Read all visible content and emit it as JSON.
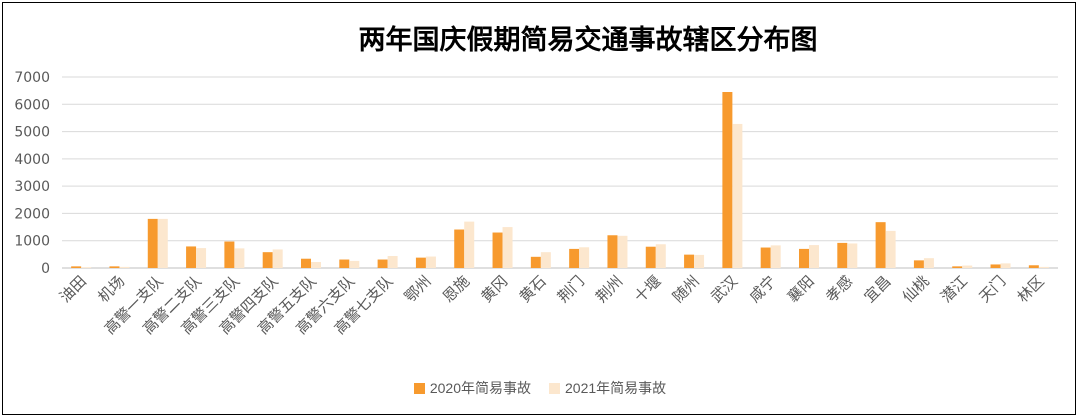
{
  "chart_data": {
    "type": "bar",
    "title": "两年国庆假期简易交通事故辖区分布图",
    "xlabel": "",
    "ylabel": "",
    "ylim": [
      0,
      7000
    ],
    "yticks": [
      0,
      1000,
      2000,
      3000,
      4000,
      5000,
      6000,
      7000
    ],
    "grid": true,
    "legend_position": "bottom",
    "categories": [
      "油田",
      "机场",
      "高警一支队",
      "高警二支队",
      "高警三支队",
      "高警四支队",
      "高警五支队",
      "高警六支队",
      "高警七支队",
      "鄂州",
      "恩施",
      "黄冈",
      "黄石",
      "荆门",
      "荆州",
      "十堰",
      "随州",
      "武汉",
      "咸宁",
      "襄阳",
      "孝感",
      "宜昌",
      "仙桃",
      "潜江",
      "天门",
      "林区"
    ],
    "series": [
      {
        "name": "2020年简易事故",
        "color": "#F79A2E",
        "values": [
          60,
          60,
          1800,
          790,
          970,
          580,
          340,
          310,
          310,
          380,
          1410,
          1300,
          410,
          700,
          1200,
          780,
          490,
          6450,
          750,
          700,
          920,
          1680,
          280,
          60,
          130,
          100
        ]
      },
      {
        "name": "2021年简易事故",
        "color": "#FCE7CE",
        "values": [
          30,
          40,
          1800,
          730,
          720,
          680,
          220,
          260,
          440,
          420,
          1700,
          1500,
          580,
          760,
          1180,
          870,
          480,
          5280,
          830,
          840,
          900,
          1360,
          360,
          90,
          170,
          40
        ]
      }
    ]
  }
}
